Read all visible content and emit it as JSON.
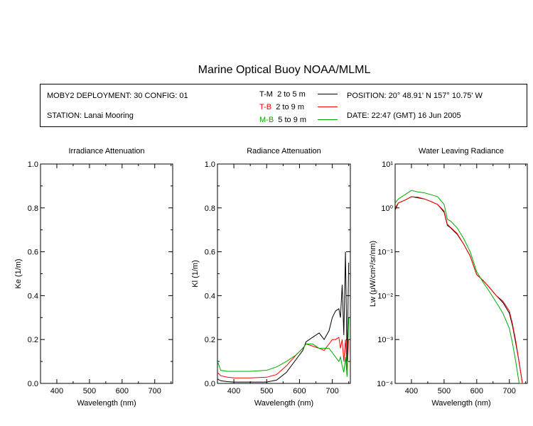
{
  "title": "Marine Optical Buoy NOAA/MLML",
  "info": {
    "deployment": "MOBY2 DEPLOYMENT: 30 CONFIG: 01",
    "station": "STATION: Lanai Mooring",
    "position": "POSITION: 20° 48.91' N   157° 10.75' W",
    "date": "DATE: 22:47 (GMT) 16 Jun 2005"
  },
  "legend": [
    {
      "code": "T-M",
      "range": "2 to 5  m",
      "color": "#000000"
    },
    {
      "code": "T-B",
      "range": "2 to 9  m",
      "color": "#ff0000"
    },
    {
      "code": "M-B",
      "range": "5 to 9  m",
      "color": "#00aa00"
    }
  ],
  "chart_data": [
    {
      "type": "line",
      "title": "Irradiance Attenuation",
      "xlabel": "Wavelength (nm)",
      "ylabel": "Ke  (1/m)",
      "xlim": [
        350,
        755
      ],
      "ylim": [
        0,
        1
      ],
      "xticks": [
        "400",
        "500",
        "600",
        "700"
      ],
      "yticks": [
        "0.0",
        "0.2",
        "0.4",
        "0.6",
        "0.8",
        "1.0"
      ],
      "series": []
    },
    {
      "type": "line",
      "title": "Radiance Attenuation",
      "xlabel": "Wavelength (nm)",
      "ylabel": "Kl  (1/m)",
      "xlim": [
        350,
        755
      ],
      "ylim": [
        0,
        1
      ],
      "xticks": [
        "400",
        "500",
        "600",
        "700"
      ],
      "yticks": [
        "0.0",
        "0.2",
        "0.4",
        "0.6",
        "0.8",
        "1.0"
      ],
      "series": [
        {
          "name": "T-M",
          "color": "#000000",
          "x": [
            350,
            360,
            380,
            400,
            450,
            500,
            530,
            560,
            590,
            610,
            620,
            640,
            660,
            675,
            690,
            700,
            710,
            720,
            725,
            730,
            735,
            740,
            745,
            750
          ],
          "y": [
            0.02,
            0.012,
            0.008,
            0.006,
            0.006,
            0.006,
            0.015,
            0.05,
            0.11,
            0.15,
            0.19,
            0.21,
            0.23,
            0.2,
            0.24,
            0.3,
            0.33,
            0.34,
            0.3,
            0.45,
            0.22,
            0.6,
            0.1,
            0.55
          ]
        },
        {
          "name": "T-B",
          "color": "#ff0000",
          "x": [
            350,
            360,
            380,
            400,
            450,
            500,
            530,
            560,
            590,
            610,
            620,
            640,
            660,
            675,
            690,
            700,
            710,
            720,
            725,
            730,
            735,
            740,
            745,
            750
          ],
          "y": [
            0.05,
            0.035,
            0.028,
            0.025,
            0.025,
            0.028,
            0.04,
            0.08,
            0.13,
            0.16,
            0.18,
            0.17,
            0.16,
            0.15,
            0.18,
            0.2,
            0.2,
            0.21,
            0.16,
            0.2,
            0.1,
            0.2,
            0.05,
            0.2
          ]
        },
        {
          "name": "M-B",
          "color": "#00aa00",
          "x": [
            350,
            360,
            380,
            400,
            450,
            500,
            530,
            560,
            590,
            610,
            620,
            640,
            660,
            675,
            690,
            700,
            710,
            720,
            725,
            730,
            735,
            740,
            745,
            750
          ],
          "y": [
            0.1,
            0.06,
            0.055,
            0.055,
            0.055,
            0.06,
            0.075,
            0.1,
            0.13,
            0.16,
            0.18,
            0.18,
            0.16,
            0.16,
            0.16,
            0.14,
            0.12,
            0.1,
            0.12,
            0.08,
            0.05,
            0.12,
            0.03,
            0.3
          ]
        }
      ]
    },
    {
      "type": "line",
      "title": "Water Leaving Radiance",
      "xlabel": "Wavelength (nm)",
      "ylabel": "Lw  (μW/cm²/sr/nm)",
      "yscale": "log",
      "xlim": [
        350,
        755
      ],
      "ylim": [
        0.0001,
        10
      ],
      "xticks": [
        "400",
        "500",
        "600",
        "700"
      ],
      "yticks": [
        "10⁻⁴",
        "10⁻³",
        "10⁻²",
        "10⁻¹",
        "10⁰",
        "10¹"
      ],
      "series": [
        {
          "name": "T-M",
          "color": "#000000",
          "x": [
            350,
            360,
            380,
            400,
            420,
            440,
            460,
            480,
            500,
            510,
            520,
            540,
            560,
            580,
            600,
            620,
            640,
            660,
            680,
            700,
            710,
            720,
            730,
            740,
            745
          ],
          "y": [
            0.9,
            1.3,
            1.5,
            1.8,
            1.7,
            1.6,
            1.4,
            1.2,
            0.8,
            0.4,
            0.35,
            0.25,
            0.15,
            0.08,
            0.03,
            0.022,
            0.015,
            0.01,
            0.007,
            0.004,
            0.002,
            0.0008,
            0.0003,
            0.0001,
            0.0001
          ]
        },
        {
          "name": "T-B",
          "color": "#ff0000",
          "x": [
            350,
            360,
            380,
            400,
            420,
            440,
            460,
            480,
            500,
            510,
            520,
            540,
            560,
            580,
            600,
            620,
            640,
            660,
            680,
            700,
            710,
            720,
            730,
            740,
            745
          ],
          "y": [
            1.0,
            1.3,
            1.5,
            1.8,
            1.75,
            1.6,
            1.4,
            1.2,
            0.85,
            0.42,
            0.36,
            0.26,
            0.15,
            0.08,
            0.03,
            0.022,
            0.015,
            0.01,
            0.0075,
            0.0045,
            0.0022,
            0.0009,
            0.0003,
            0.0001,
            0.0001
          ]
        },
        {
          "name": "M-B",
          "color": "#00aa00",
          "x": [
            350,
            360,
            380,
            400,
            420,
            440,
            460,
            480,
            500,
            510,
            520,
            540,
            560,
            580,
            600,
            620,
            640,
            660,
            680,
            700,
            710,
            720,
            730,
            740,
            745
          ],
          "y": [
            1.3,
            1.6,
            2.0,
            2.5,
            2.3,
            2.2,
            2.0,
            1.8,
            1.2,
            0.55,
            0.5,
            0.35,
            0.2,
            0.1,
            0.035,
            0.02,
            0.012,
            0.007,
            0.004,
            0.0018,
            0.0008,
            0.0003,
            0.0001,
            0.0001,
            0.0001
          ]
        }
      ]
    }
  ]
}
